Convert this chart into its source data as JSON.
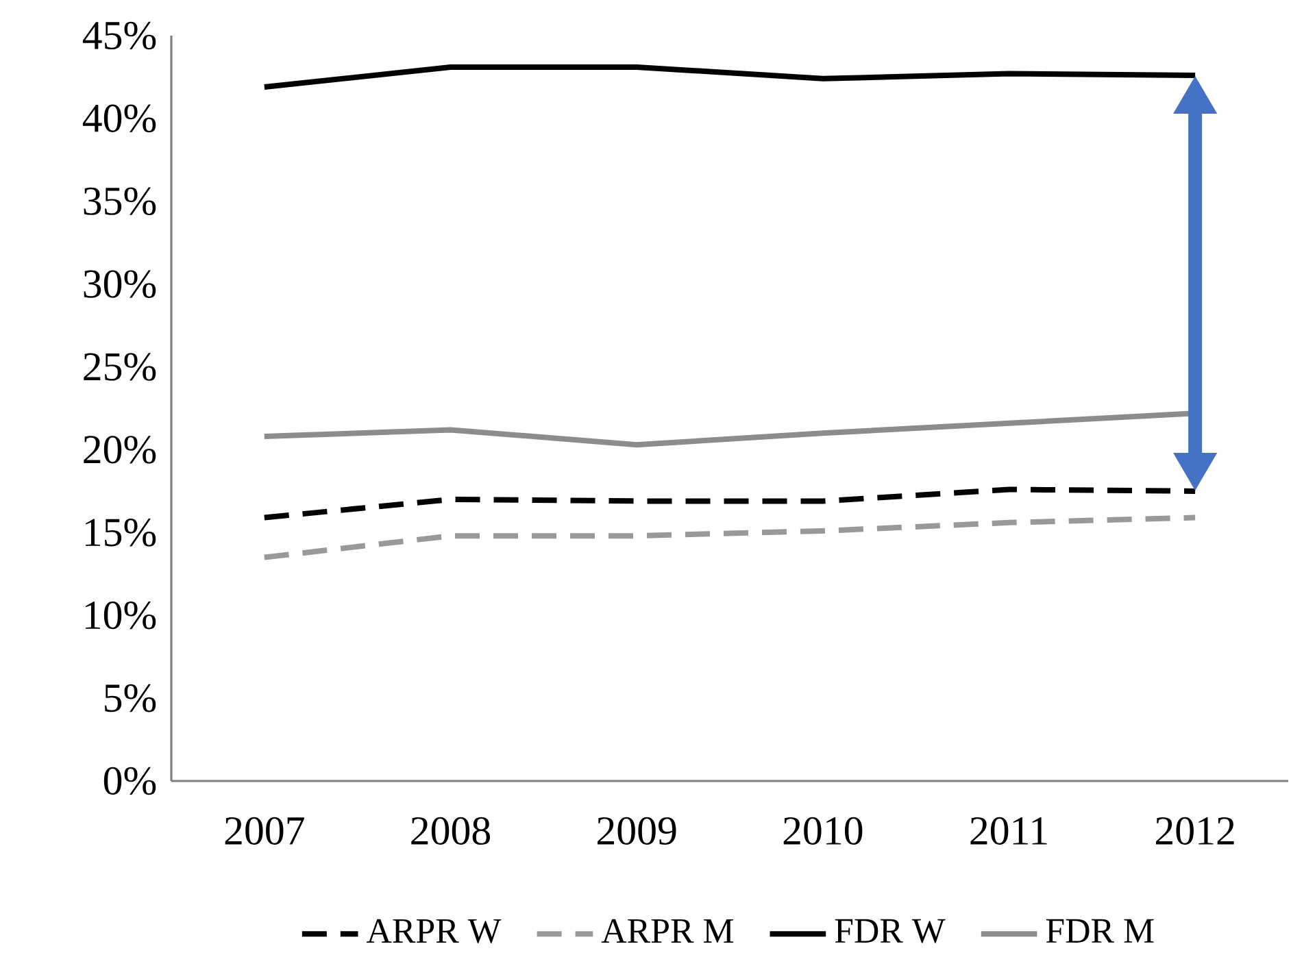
{
  "chart_data": {
    "type": "line",
    "categories": [
      "2007",
      "2008",
      "2009",
      "2010",
      "2011",
      "2012"
    ],
    "series": [
      {
        "name": "ARPR W",
        "color": "#000000",
        "line_style": "dashed",
        "values": [
          15.9,
          17.0,
          16.9,
          16.9,
          17.6,
          17.5
        ]
      },
      {
        "name": "ARPR M",
        "color": "#999999",
        "line_style": "dashed",
        "values": [
          13.5,
          14.8,
          14.8,
          15.1,
          15.6,
          15.9
        ]
      },
      {
        "name": "FDR W",
        "color": "#000000",
        "line_style": "solid",
        "values": [
          41.9,
          43.1,
          43.1,
          42.4,
          42.7,
          42.6
        ]
      },
      {
        "name": "FDR M",
        "color": "#8c8c8c",
        "line_style": "solid",
        "values": [
          20.8,
          21.2,
          20.3,
          21.0,
          21.6,
          22.2
        ]
      }
    ],
    "ylim": [
      0,
      45
    ],
    "yticks": [
      {
        "value": 0,
        "label": "0%"
      },
      {
        "value": 5,
        "label": "5%"
      },
      {
        "value": 10,
        "label": "10%"
      },
      {
        "value": 15,
        "label": "15%"
      },
      {
        "value": 20,
        "label": "20%"
      },
      {
        "value": 25,
        "label": "25%"
      },
      {
        "value": 30,
        "label": "30%"
      },
      {
        "value": 35,
        "label": "35%"
      },
      {
        "value": 40,
        "label": "40%"
      },
      {
        "value": 45,
        "label": "45%"
      }
    ],
    "grid": false,
    "legend": "bottom",
    "marker": "none"
  }
}
